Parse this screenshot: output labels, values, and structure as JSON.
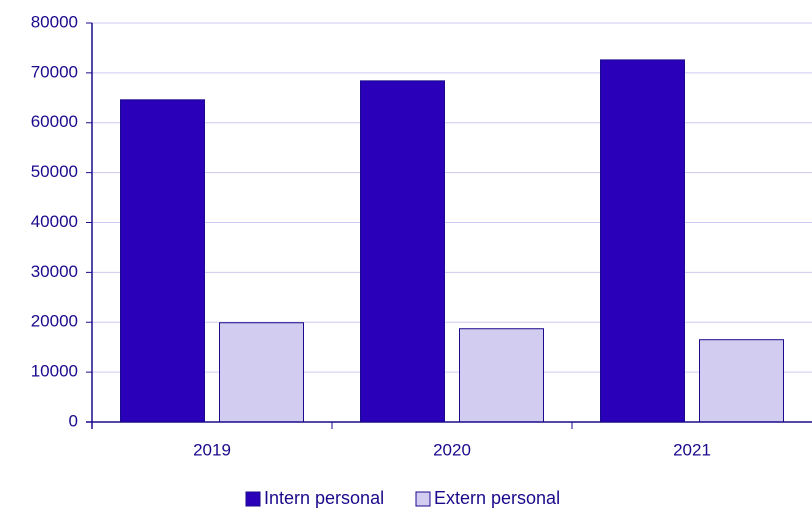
{
  "chart_data": {
    "type": "bar",
    "categories": [
      "2019",
      "2020",
      "2021"
    ],
    "series": [
      {
        "name": "Intern personal",
        "color": "#2a00b8",
        "values": [
          64600,
          68400,
          72600
        ]
      },
      {
        "name": "Extern personal",
        "color": "#d2ccf0",
        "values": [
          19900,
          18700,
          16500
        ]
      }
    ],
    "ylim": [
      0,
      80000
    ],
    "yticks": [
      0,
      10000,
      20000,
      30000,
      40000,
      50000,
      60000,
      70000,
      80000
    ],
    "grid": true,
    "legend": "bottom"
  }
}
